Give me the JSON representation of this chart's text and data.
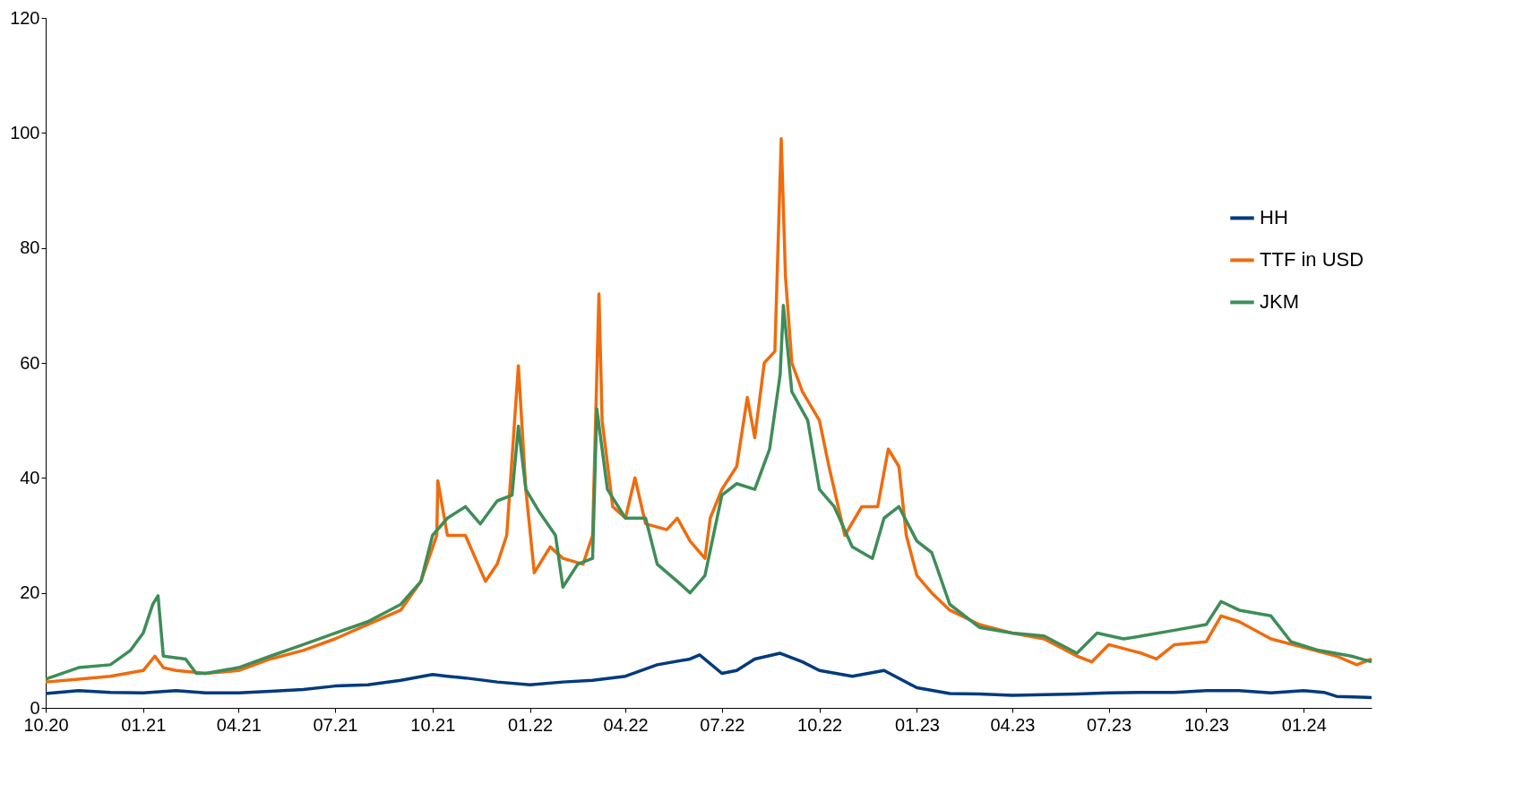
{
  "chart_data": {
    "type": "line",
    "xlim": [
      "2020-10-01",
      "2024-03-05"
    ],
    "xticks": [
      {
        "value": "2020-10-01",
        "label": "10.20"
      },
      {
        "value": "2021-01-01",
        "label": "01.21"
      },
      {
        "value": "2021-04-01",
        "label": "04.21"
      },
      {
        "value": "2021-07-01",
        "label": "07.21"
      },
      {
        "value": "2021-10-01",
        "label": "10.21"
      },
      {
        "value": "2022-01-01",
        "label": "01.22"
      },
      {
        "value": "2022-04-01",
        "label": "04.22"
      },
      {
        "value": "2022-07-01",
        "label": "07.22"
      },
      {
        "value": "2022-10-01",
        "label": "10.22"
      },
      {
        "value": "2023-01-01",
        "label": "01.23"
      },
      {
        "value": "2023-04-01",
        "label": "04.23"
      },
      {
        "value": "2023-07-01",
        "label": "07.23"
      },
      {
        "value": "2023-10-01",
        "label": "10.23"
      },
      {
        "value": "2024-01-01",
        "label": "01.24"
      }
    ],
    "ylim": [
      0,
      120
    ],
    "yticks": [
      0,
      20,
      40,
      60,
      80,
      100,
      120
    ],
    "grid": false,
    "legend": "right",
    "line_style": "solid",
    "marker": "none",
    "series": [
      {
        "name": "HH",
        "color": "#003a7d",
        "x": [
          "2020-10-01",
          "2020-11-01",
          "2020-12-01",
          "2021-01-01",
          "2021-02-01",
          "2021-03-01",
          "2021-04-01",
          "2021-05-01",
          "2021-06-01",
          "2021-07-01",
          "2021-08-01",
          "2021-09-01",
          "2021-10-01",
          "2021-10-15",
          "2021-11-01",
          "2021-12-01",
          "2022-01-01",
          "2022-02-01",
          "2022-03-01",
          "2022-04-01",
          "2022-05-01",
          "2022-06-01",
          "2022-06-10",
          "2022-07-01",
          "2022-07-15",
          "2022-08-01",
          "2022-08-25",
          "2022-09-15",
          "2022-10-01",
          "2022-11-01",
          "2022-12-01",
          "2023-01-01",
          "2023-02-01",
          "2023-03-01",
          "2023-04-01",
          "2023-05-01",
          "2023-06-01",
          "2023-07-01",
          "2023-08-01",
          "2023-09-01",
          "2023-10-01",
          "2023-11-01",
          "2023-12-01",
          "2024-01-01",
          "2024-01-20",
          "2024-02-01",
          "2024-03-05"
        ],
        "values": [
          2.5,
          3,
          2.7,
          2.6,
          3.0,
          2.6,
          2.6,
          2.9,
          3.2,
          3.8,
          4.0,
          4.8,
          5.8,
          5.5,
          5.2,
          4.5,
          4.0,
          4.5,
          4.8,
          5.5,
          7.5,
          8.5,
          9.2,
          6.0,
          6.5,
          8.5,
          9.5,
          8.0,
          6.5,
          5.5,
          6.5,
          3.5,
          2.5,
          2.4,
          2.2,
          2.3,
          2.4,
          2.6,
          2.7,
          2.7,
          3.0,
          3.0,
          2.6,
          3.0,
          2.7,
          2.0,
          1.8
        ]
      },
      {
        "name": "TTF in USD",
        "color": "#ee6c0e",
        "x": [
          "2020-10-01",
          "2020-11-01",
          "2020-12-01",
          "2021-01-01",
          "2021-01-12",
          "2021-01-20",
          "2021-02-01",
          "2021-03-01",
          "2021-04-01",
          "2021-05-01",
          "2021-06-01",
          "2021-07-01",
          "2021-08-01",
          "2021-09-01",
          "2021-09-20",
          "2021-10-05",
          "2021-10-06",
          "2021-10-15",
          "2021-11-01",
          "2021-11-20",
          "2021-12-01",
          "2021-12-10",
          "2021-12-21",
          "2021-12-28",
          "2022-01-05",
          "2022-01-20",
          "2022-02-01",
          "2022-02-20",
          "2022-03-01",
          "2022-03-07",
          "2022-03-10",
          "2022-03-20",
          "2022-04-01",
          "2022-04-10",
          "2022-04-20",
          "2022-05-10",
          "2022-05-20",
          "2022-06-01",
          "2022-06-15",
          "2022-06-20",
          "2022-07-01",
          "2022-07-15",
          "2022-07-25",
          "2022-08-01",
          "2022-08-10",
          "2022-08-20",
          "2022-08-26",
          "2022-08-30",
          "2022-09-05",
          "2022-09-15",
          "2022-10-01",
          "2022-10-10",
          "2022-10-25",
          "2022-11-10",
          "2022-11-25",
          "2022-12-05",
          "2022-12-15",
          "2022-12-22",
          "2023-01-01",
          "2023-01-15",
          "2023-02-01",
          "2023-03-01",
          "2023-04-01",
          "2023-05-01",
          "2023-06-01",
          "2023-06-15",
          "2023-07-01",
          "2023-08-01",
          "2023-08-15",
          "2023-09-01",
          "2023-10-01",
          "2023-10-15",
          "2023-11-01",
          "2023-12-01",
          "2024-01-01",
          "2024-02-01",
          "2024-02-20",
          "2024-03-05"
        ],
        "values": [
          4.5,
          5,
          5.5,
          6.5,
          9,
          7,
          6.5,
          6.0,
          6.5,
          8.5,
          10,
          12,
          14.5,
          17,
          22,
          30,
          39.5,
          30,
          30,
          22,
          25,
          30,
          59.5,
          38,
          23.5,
          28,
          26,
          25,
          30,
          72,
          50,
          35,
          33,
          40,
          32,
          31,
          33,
          29,
          26,
          33,
          38,
          42,
          54,
          47,
          60,
          62,
          99,
          75,
          60,
          55,
          50,
          42,
          30,
          35,
          35,
          45,
          42,
          30,
          23,
          20,
          17,
          14.5,
          13,
          12,
          9,
          8,
          11,
          9.5,
          8.5,
          11,
          11.5,
          16,
          15,
          12,
          10.5,
          9,
          7.5,
          8.5
        ]
      },
      {
        "name": "JKM",
        "color": "#3e8d58",
        "x": [
          "2020-10-01",
          "2020-11-01",
          "2020-12-01",
          "2020-12-20",
          "2021-01-01",
          "2021-01-10",
          "2021-01-15",
          "2021-01-20",
          "2021-02-10",
          "2021-02-20",
          "2021-03-01",
          "2021-04-01",
          "2021-05-01",
          "2021-06-01",
          "2021-07-01",
          "2021-08-01",
          "2021-09-01",
          "2021-09-20",
          "2021-10-01",
          "2021-10-15",
          "2021-11-01",
          "2021-11-15",
          "2021-12-01",
          "2021-12-15",
          "2021-12-21",
          "2021-12-28",
          "2022-01-10",
          "2022-01-25",
          "2022-02-01",
          "2022-02-15",
          "2022-03-01",
          "2022-03-05",
          "2022-03-15",
          "2022-04-01",
          "2022-04-20",
          "2022-05-01",
          "2022-05-20",
          "2022-06-01",
          "2022-06-15",
          "2022-07-01",
          "2022-07-15",
          "2022-08-01",
          "2022-08-15",
          "2022-08-25",
          "2022-08-28",
          "2022-09-05",
          "2022-09-20",
          "2022-10-01",
          "2022-10-15",
          "2022-11-01",
          "2022-11-20",
          "2022-12-01",
          "2022-12-15",
          "2023-01-01",
          "2023-01-15",
          "2023-02-01",
          "2023-03-01",
          "2023-04-01",
          "2023-05-01",
          "2023-06-01",
          "2023-06-20",
          "2023-07-15",
          "2023-08-01",
          "2023-09-01",
          "2023-10-01",
          "2023-10-15",
          "2023-11-01",
          "2023-12-01",
          "2023-12-20",
          "2024-01-15",
          "2024-02-15",
          "2024-03-05"
        ],
        "values": [
          5,
          7,
          7.5,
          10,
          13,
          18,
          19.5,
          9,
          8.5,
          6,
          6,
          7,
          9,
          11,
          13,
          15,
          18,
          22,
          30,
          33,
          35,
          32,
          36,
          37,
          49,
          38,
          34,
          30,
          21,
          25,
          26,
          52,
          38,
          33,
          33,
          25,
          22,
          20,
          23,
          37,
          39,
          38,
          45,
          58,
          70,
          55,
          50,
          38,
          35,
          28,
          26,
          33,
          35,
          29,
          27,
          18,
          14,
          13,
          12.5,
          9.5,
          13,
          12,
          12.5,
          13.5,
          14.5,
          18.5,
          17,
          16,
          11.5,
          10,
          9,
          8
        ]
      }
    ]
  }
}
